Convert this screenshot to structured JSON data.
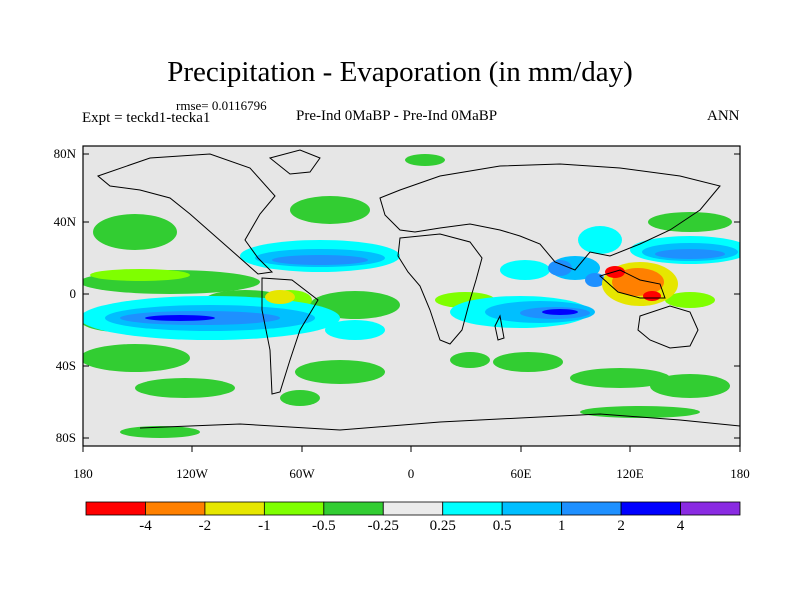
{
  "figure": {
    "title": "Precipitation - Evaporation (in mm/day)",
    "rmse": "rmse= 0.0116796",
    "experiment": "Expt = teckd1-tecka1",
    "subtitle": "Pre-Ind 0MaBP - Pre-Ind 0MaBP",
    "season": "ANN"
  },
  "axes": {
    "lat_labels": [
      "80N",
      "40N",
      "0",
      "40S",
      "80S"
    ],
    "lon_labels": [
      "180",
      "120W",
      "60W",
      "0",
      "60E",
      "120E",
      "180"
    ]
  },
  "colorbar": {
    "colors": [
      "#ff0000",
      "#ff8000",
      "#e6e600",
      "#7fff00",
      "#32cd32",
      "#ebebeb",
      "#00ffff",
      "#00bfff",
      "#1e90ff",
      "#0000ff",
      "#8a2be2"
    ],
    "labels": [
      "-4",
      "-2",
      "-1",
      "-0.5",
      "-0.25",
      "0.25",
      "0.5",
      "1",
      "2",
      "4"
    ]
  },
  "style": {
    "land_fill": "#e6e6e6",
    "coast": "#000000"
  }
}
